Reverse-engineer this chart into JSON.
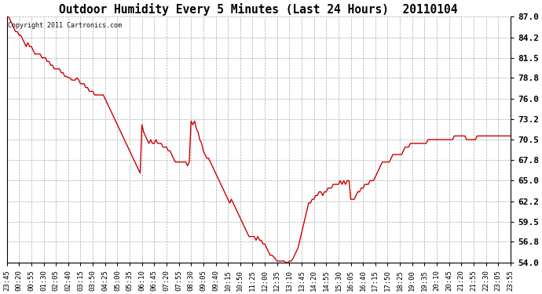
{
  "title": "Outdoor Humidity Every 5 Minutes (Last 24 Hours)  20110104",
  "copyright_text": "Copyright 2011 Cartronics.com",
  "line_color": "#cc0000",
  "bg_color": "#ffffff",
  "grid_color": "#aaaaaa",
  "yticks": [
    54.0,
    56.8,
    59.5,
    62.2,
    65.0,
    67.8,
    70.5,
    73.2,
    76.0,
    78.8,
    81.5,
    84.2,
    87.0
  ],
  "ylim": [
    54.0,
    87.0
  ],
  "x_tick_labels": [
    "23:45",
    "00:20",
    "00:55",
    "01:30",
    "02:05",
    "02:40",
    "03:15",
    "03:50",
    "04:25",
    "05:00",
    "05:35",
    "06:10",
    "06:45",
    "07:20",
    "07:55",
    "08:30",
    "09:05",
    "09:40",
    "10:15",
    "10:50",
    "11:25",
    "12:00",
    "12:35",
    "13:10",
    "13:45",
    "14:20",
    "14:55",
    "15:30",
    "16:05",
    "16:40",
    "17:15",
    "17:50",
    "18:25",
    "19:00",
    "19:35",
    "20:10",
    "20:45",
    "21:20",
    "21:55",
    "22:30",
    "23:05",
    "23:55"
  ],
  "humidity_data": [
    [
      0,
      87.0
    ],
    [
      1,
      87.0
    ],
    [
      2,
      86.5
    ],
    [
      3,
      86.0
    ],
    [
      4,
      85.5
    ],
    [
      5,
      85.0
    ],
    [
      6,
      85.0
    ],
    [
      7,
      84.5
    ],
    [
      8,
      84.5
    ],
    [
      9,
      84.0
    ],
    [
      10,
      83.5
    ],
    [
      11,
      83.0
    ],
    [
      12,
      83.5
    ],
    [
      13,
      83.0
    ],
    [
      14,
      83.0
    ],
    [
      15,
      82.5
    ],
    [
      16,
      82.0
    ],
    [
      17,
      82.0
    ],
    [
      18,
      82.0
    ],
    [
      19,
      82.0
    ],
    [
      20,
      81.5
    ],
    [
      21,
      81.5
    ],
    [
      22,
      81.5
    ],
    [
      23,
      81.0
    ],
    [
      24,
      81.0
    ],
    [
      25,
      80.5
    ],
    [
      26,
      80.5
    ],
    [
      27,
      80.0
    ],
    [
      28,
      80.0
    ],
    [
      29,
      80.0
    ],
    [
      30,
      80.0
    ],
    [
      31,
      79.5
    ],
    [
      32,
      79.5
    ],
    [
      33,
      79.0
    ],
    [
      34,
      79.0
    ],
    [
      35,
      78.8
    ],
    [
      36,
      78.8
    ],
    [
      37,
      78.5
    ],
    [
      38,
      78.5
    ],
    [
      39,
      78.5
    ],
    [
      40,
      78.8
    ],
    [
      41,
      78.5
    ],
    [
      42,
      78.0
    ],
    [
      43,
      78.0
    ],
    [
      44,
      78.0
    ],
    [
      45,
      77.5
    ],
    [
      46,
      77.5
    ],
    [
      47,
      77.0
    ],
    [
      48,
      77.0
    ],
    [
      49,
      77.0
    ],
    [
      50,
      76.5
    ],
    [
      51,
      76.5
    ],
    [
      52,
      76.5
    ],
    [
      53,
      76.5
    ],
    [
      54,
      76.5
    ],
    [
      55,
      76.5
    ],
    [
      56,
      76.0
    ],
    [
      57,
      75.5
    ],
    [
      58,
      75.0
    ],
    [
      59,
      74.5
    ],
    [
      60,
      74.0
    ],
    [
      61,
      73.5
    ],
    [
      62,
      73.0
    ],
    [
      63,
      72.5
    ],
    [
      64,
      72.0
    ],
    [
      65,
      71.5
    ],
    [
      66,
      71.0
    ],
    [
      67,
      70.5
    ],
    [
      68,
      70.0
    ],
    [
      69,
      69.5
    ],
    [
      70,
      69.0
    ],
    [
      71,
      68.5
    ],
    [
      72,
      68.0
    ],
    [
      73,
      67.5
    ],
    [
      74,
      67.0
    ],
    [
      75,
      66.5
    ],
    [
      76,
      66.0
    ],
    [
      77,
      72.5
    ],
    [
      78,
      71.5
    ],
    [
      79,
      71.0
    ],
    [
      80,
      70.5
    ],
    [
      81,
      70.0
    ],
    [
      82,
      70.5
    ],
    [
      83,
      70.0
    ],
    [
      84,
      70.0
    ],
    [
      85,
      70.5
    ],
    [
      86,
      70.0
    ],
    [
      87,
      70.0
    ],
    [
      88,
      70.0
    ],
    [
      89,
      69.5
    ],
    [
      90,
      69.5
    ],
    [
      91,
      69.5
    ],
    [
      92,
      69.0
    ],
    [
      93,
      69.0
    ],
    [
      94,
      68.5
    ],
    [
      95,
      68.0
    ],
    [
      96,
      67.5
    ],
    [
      97,
      67.5
    ],
    [
      98,
      67.5
    ],
    [
      99,
      67.5
    ],
    [
      100,
      67.5
    ],
    [
      101,
      67.5
    ],
    [
      102,
      67.5
    ],
    [
      103,
      67.0
    ],
    [
      104,
      67.5
    ],
    [
      105,
      73.0
    ],
    [
      106,
      72.5
    ],
    [
      107,
      73.0
    ],
    [
      108,
      72.0
    ],
    [
      109,
      71.5
    ],
    [
      110,
      70.5
    ],
    [
      111,
      70.0
    ],
    [
      112,
      69.0
    ],
    [
      113,
      68.5
    ],
    [
      114,
      68.0
    ],
    [
      115,
      68.0
    ],
    [
      116,
      67.5
    ],
    [
      117,
      67.0
    ],
    [
      118,
      66.5
    ],
    [
      119,
      66.0
    ],
    [
      120,
      65.5
    ],
    [
      121,
      65.0
    ],
    [
      122,
      64.5
    ],
    [
      123,
      64.0
    ],
    [
      124,
      63.5
    ],
    [
      125,
      63.0
    ],
    [
      126,
      62.5
    ],
    [
      127,
      62.0
    ],
    [
      128,
      62.5
    ],
    [
      129,
      62.0
    ],
    [
      130,
      61.5
    ],
    [
      131,
      61.0
    ],
    [
      132,
      60.5
    ],
    [
      133,
      60.0
    ],
    [
      134,
      59.5
    ],
    [
      135,
      59.0
    ],
    [
      136,
      58.5
    ],
    [
      137,
      58.0
    ],
    [
      138,
      57.5
    ],
    [
      139,
      57.5
    ],
    [
      140,
      57.5
    ],
    [
      141,
      57.5
    ],
    [
      142,
      57.0
    ],
    [
      143,
      57.5
    ],
    [
      144,
      57.0
    ],
    [
      145,
      57.0
    ],
    [
      146,
      56.5
    ],
    [
      147,
      56.5
    ],
    [
      148,
      56.0
    ],
    [
      149,
      55.5
    ],
    [
      150,
      55.0
    ],
    [
      151,
      55.0
    ],
    [
      152,
      54.8
    ],
    [
      153,
      54.5
    ],
    [
      154,
      54.2
    ],
    [
      155,
      54.2
    ],
    [
      156,
      54.2
    ],
    [
      157,
      54.2
    ],
    [
      158,
      54.2
    ],
    [
      159,
      54.0
    ],
    [
      160,
      54.0
    ],
    [
      161,
      54.2
    ],
    [
      162,
      54.2
    ],
    [
      163,
      54.5
    ],
    [
      164,
      55.0
    ],
    [
      165,
      55.5
    ],
    [
      166,
      56.0
    ],
    [
      167,
      57.0
    ],
    [
      168,
      58.0
    ],
    [
      169,
      59.0
    ],
    [
      170,
      60.0
    ],
    [
      171,
      61.0
    ],
    [
      172,
      62.0
    ],
    [
      173,
      62.0
    ],
    [
      174,
      62.5
    ],
    [
      175,
      62.5
    ],
    [
      176,
      63.0
    ],
    [
      177,
      63.0
    ],
    [
      178,
      63.5
    ],
    [
      179,
      63.5
    ],
    [
      180,
      63.0
    ],
    [
      181,
      63.5
    ],
    [
      182,
      63.5
    ],
    [
      183,
      64.0
    ],
    [
      184,
      64.0
    ],
    [
      185,
      64.0
    ],
    [
      186,
      64.5
    ],
    [
      187,
      64.5
    ],
    [
      188,
      64.5
    ],
    [
      189,
      64.5
    ],
    [
      190,
      65.0
    ],
    [
      191,
      64.5
    ],
    [
      192,
      65.0
    ],
    [
      193,
      64.5
    ],
    [
      194,
      65.0
    ],
    [
      195,
      65.0
    ],
    [
      196,
      62.5
    ],
    [
      197,
      62.5
    ],
    [
      198,
      62.5
    ],
    [
      199,
      63.0
    ],
    [
      200,
      63.5
    ],
    [
      201,
      63.5
    ],
    [
      202,
      64.0
    ],
    [
      203,
      64.0
    ],
    [
      204,
      64.5
    ],
    [
      205,
      64.5
    ],
    [
      206,
      64.5
    ],
    [
      207,
      65.0
    ],
    [
      208,
      65.0
    ],
    [
      209,
      65.0
    ],
    [
      210,
      65.5
    ],
    [
      211,
      66.0
    ],
    [
      212,
      66.5
    ],
    [
      213,
      67.0
    ],
    [
      214,
      67.5
    ],
    [
      215,
      67.5
    ],
    [
      216,
      67.5
    ],
    [
      217,
      67.5
    ],
    [
      218,
      67.5
    ],
    [
      219,
      68.0
    ],
    [
      220,
      68.5
    ],
    [
      221,
      68.5
    ],
    [
      222,
      68.5
    ],
    [
      223,
      68.5
    ],
    [
      224,
      68.5
    ],
    [
      225,
      68.5
    ],
    [
      226,
      69.0
    ],
    [
      227,
      69.5
    ],
    [
      228,
      69.5
    ],
    [
      229,
      69.5
    ],
    [
      230,
      70.0
    ],
    [
      231,
      70.0
    ],
    [
      232,
      70.0
    ],
    [
      233,
      70.0
    ],
    [
      234,
      70.0
    ],
    [
      235,
      70.0
    ],
    [
      236,
      70.0
    ],
    [
      237,
      70.0
    ],
    [
      238,
      70.0
    ],
    [
      239,
      70.0
    ],
    [
      240,
      70.5
    ],
    [
      241,
      70.5
    ],
    [
      242,
      70.5
    ],
    [
      243,
      70.5
    ],
    [
      244,
      70.5
    ],
    [
      245,
      70.5
    ],
    [
      246,
      70.5
    ],
    [
      247,
      70.5
    ],
    [
      248,
      70.5
    ],
    [
      249,
      70.5
    ],
    [
      250,
      70.5
    ],
    [
      251,
      70.5
    ],
    [
      252,
      70.5
    ],
    [
      253,
      70.5
    ],
    [
      254,
      70.5
    ],
    [
      255,
      71.0
    ],
    [
      256,
      71.0
    ],
    [
      257,
      71.0
    ],
    [
      258,
      71.0
    ],
    [
      259,
      71.0
    ],
    [
      260,
      71.0
    ],
    [
      261,
      71.0
    ],
    [
      262,
      70.5
    ],
    [
      263,
      70.5
    ],
    [
      264,
      70.5
    ],
    [
      265,
      70.5
    ],
    [
      266,
      70.5
    ],
    [
      267,
      70.5
    ],
    [
      268,
      71.0
    ],
    [
      269,
      71.0
    ],
    [
      270,
      71.0
    ],
    [
      271,
      71.0
    ],
    [
      272,
      71.0
    ],
    [
      273,
      71.0
    ],
    [
      274,
      71.0
    ],
    [
      275,
      71.0
    ],
    [
      276,
      71.0
    ],
    [
      277,
      71.0
    ],
    [
      278,
      71.0
    ],
    [
      279,
      71.0
    ],
    [
      280,
      71.0
    ],
    [
      281,
      71.0
    ],
    [
      282,
      71.0
    ],
    [
      283,
      71.0
    ],
    [
      284,
      71.0
    ],
    [
      285,
      71.0
    ],
    [
      286,
      71.0
    ],
    [
      287,
      71.0
    ]
  ],
  "n_points": 288
}
